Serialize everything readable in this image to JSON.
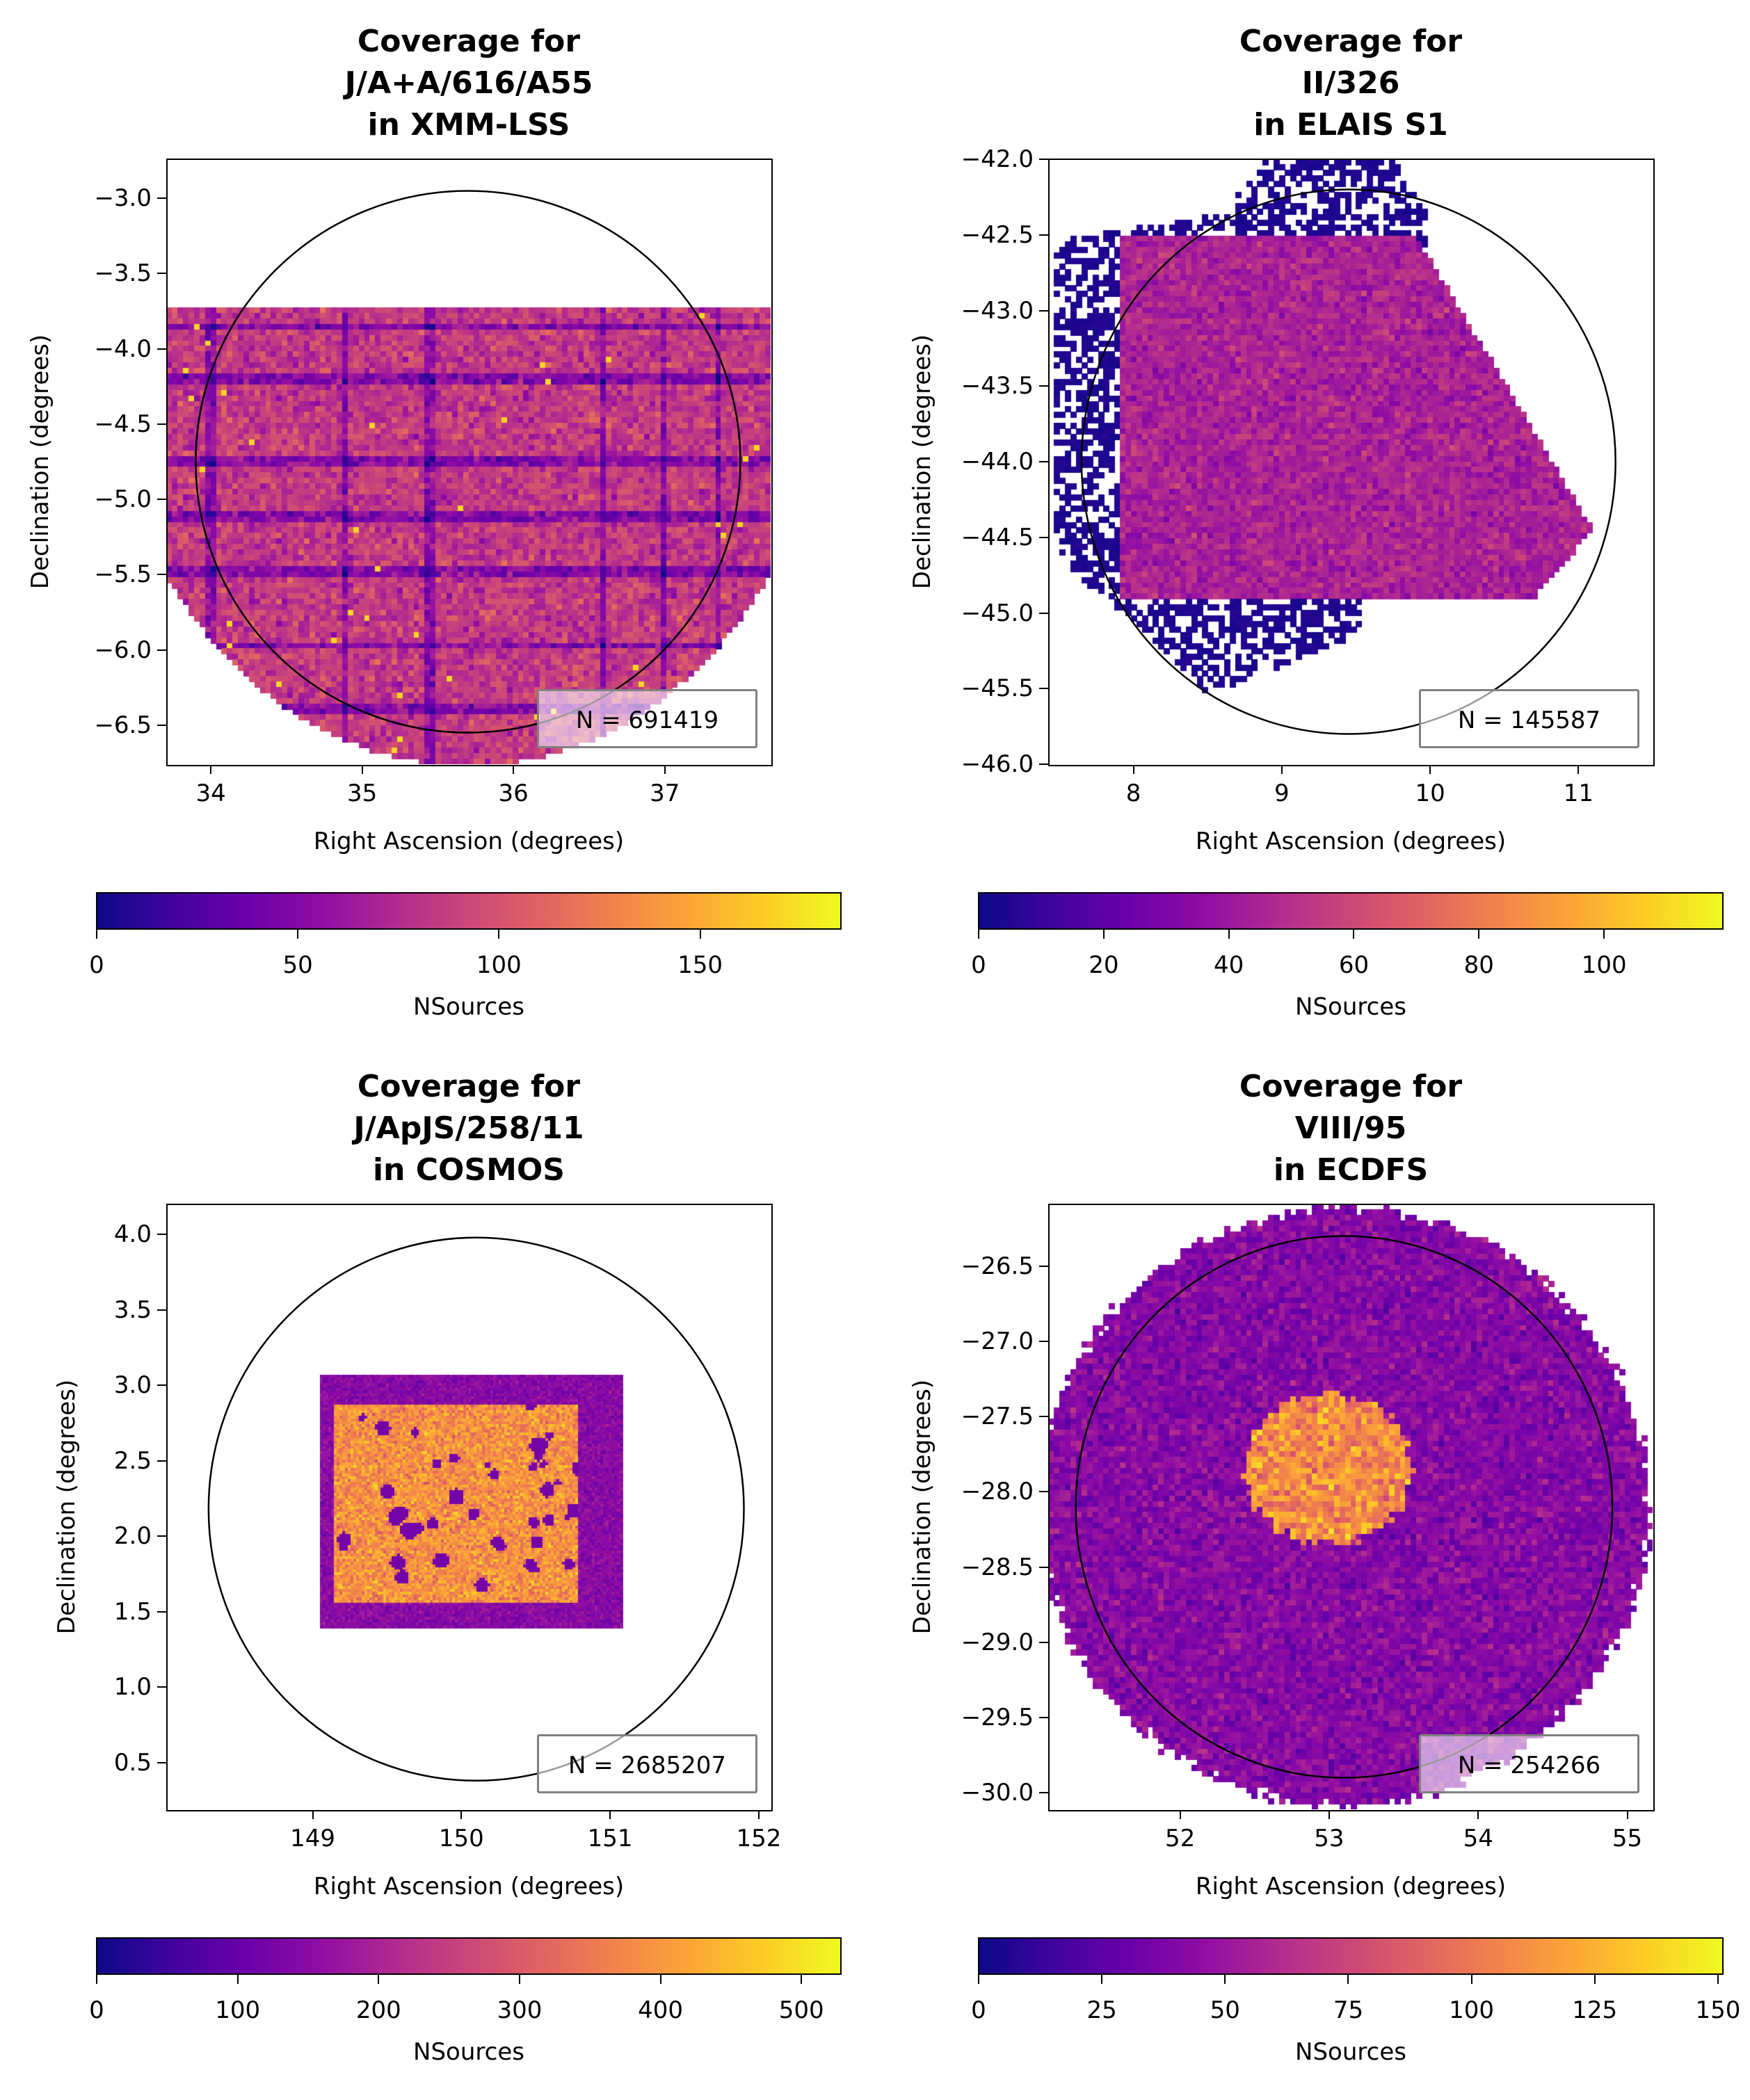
{
  "colormap": [
    "#0d0887",
    "#41049d",
    "#6a00a8",
    "#8f0da4",
    "#b12a90",
    "#cc4778",
    "#e16462",
    "#f2844b",
    "#fca636",
    "#fcce25",
    "#f0f921"
  ],
  "chart_data": [
    {
      "type": "heatmap",
      "title": [
        "Coverage for",
        "J/A+A/616/A55",
        "in XMM-LSS"
      ],
      "xlabel": "Right Ascension (degrees)",
      "ylabel": "Declination (degrees)",
      "xlim": [
        33.71,
        37.7
      ],
      "ylim": [
        -6.76,
        -2.74
      ],
      "xticks": [
        34,
        35,
        36,
        37
      ],
      "xticklabels": [
        "34",
        "35",
        "36",
        "37"
      ],
      "yticks": [
        -3.0,
        -3.5,
        -4.0,
        -4.5,
        -5.0,
        -5.5,
        -6.0,
        -6.5
      ],
      "yticklabels": [
        "−3.0",
        "−3.5",
        "−4.0",
        "−4.5",
        "−5.0",
        "−5.5",
        "−6.0",
        "−6.5"
      ],
      "circle": {
        "center": [
          35.7,
          -4.75
        ],
        "radius": 1.8
      },
      "legend": "N = 691419",
      "colorbar": {
        "label": "NSources",
        "range": [
          0,
          185
        ],
        "ticks": [
          0,
          50,
          100,
          150
        ],
        "ticklabels": [
          "0",
          "50",
          "100",
          "150"
        ]
      }
    },
    {
      "type": "heatmap",
      "title": [
        "Coverage for",
        "II/326",
        "in ELAIS S1"
      ],
      "xlabel": "Right Ascension (degrees)",
      "ylabel": "Declination (degrees)",
      "xlim": [
        7.43,
        11.5
      ],
      "ylim": [
        -46.0,
        -42.0
      ],
      "xticks": [
        8,
        9,
        10,
        11
      ],
      "xticklabels": [
        "8",
        "9",
        "10",
        "11"
      ],
      "yticks": [
        -42.0,
        -42.5,
        -43.0,
        -43.5,
        -44.0,
        -44.5,
        -45.0,
        -45.5,
        -46.0
      ],
      "yticklabels": [
        "−42.0",
        "−42.5",
        "−43.0",
        "−43.5",
        "−44.0",
        "−44.5",
        "−45.0",
        "−45.5",
        "−46.0"
      ],
      "circle": {
        "center": [
          9.45,
          -44.0
        ],
        "radius": 1.8
      },
      "legend": "N = 145587",
      "colorbar": {
        "label": "NSources",
        "range": [
          0,
          119
        ],
        "ticks": [
          0,
          20,
          40,
          60,
          80,
          100
        ],
        "ticklabels": [
          "0",
          "20",
          "40",
          "60",
          "80",
          "100"
        ]
      }
    },
    {
      "type": "heatmap",
      "title": [
        "Coverage for",
        "J/ApJS/258/11",
        "in COSMOS"
      ],
      "xlabel": "Right Ascension (degrees)",
      "ylabel": "Declination (degrees)",
      "xlim": [
        148.02,
        152.08
      ],
      "ylim": [
        0.19,
        4.2
      ],
      "xticks": [
        149,
        150,
        151,
        152
      ],
      "xticklabels": [
        "149",
        "150",
        "151",
        "152"
      ],
      "yticks": [
        4.0,
        3.5,
        3.0,
        2.5,
        2.0,
        1.5,
        1.0,
        0.5
      ],
      "yticklabels": [
        "4.0",
        "3.5",
        "3.0",
        "2.5",
        "2.0",
        "1.5",
        "1.0",
        "0.5"
      ],
      "circle": {
        "center": [
          150.1,
          2.18
        ],
        "radius": 1.8
      },
      "legend": "N = 2685207",
      "colorbar": {
        "label": "NSources",
        "range": [
          0,
          528
        ],
        "ticks": [
          0,
          100,
          200,
          300,
          400,
          500
        ],
        "ticklabels": [
          "0",
          "100",
          "200",
          "300",
          "400",
          "500"
        ]
      }
    },
    {
      "type": "heatmap",
      "title": [
        "Coverage for",
        "VIII/95",
        "in ECDFS"
      ],
      "xlabel": "Right Ascension (degrees)",
      "ylabel": "Declination (degrees)",
      "xlim": [
        51.12,
        55.17
      ],
      "ylim": [
        -30.11,
        -26.09
      ],
      "xticks": [
        52,
        53,
        54,
        55
      ],
      "xticklabels": [
        "52",
        "53",
        "54",
        "55"
      ],
      "yticks": [
        -26.5,
        -27.0,
        -27.5,
        -28.0,
        -28.5,
        -29.0,
        -29.5,
        -30.0
      ],
      "yticklabels": [
        "−26.5",
        "−27.0",
        "−27.5",
        "−28.0",
        "−28.5",
        "−29.0",
        "−29.5",
        "−30.0"
      ],
      "circle": {
        "center": [
          53.1,
          -28.1
        ],
        "radius": 1.8
      },
      "legend": "N = 254266",
      "colorbar": {
        "label": "NSources",
        "range": [
          0,
          151
        ],
        "ticks": [
          0,
          25,
          50,
          75,
          100,
          125,
          150
        ],
        "ticklabels": [
          "0",
          "25",
          "50",
          "75",
          "100",
          "125",
          "150"
        ]
      }
    }
  ]
}
